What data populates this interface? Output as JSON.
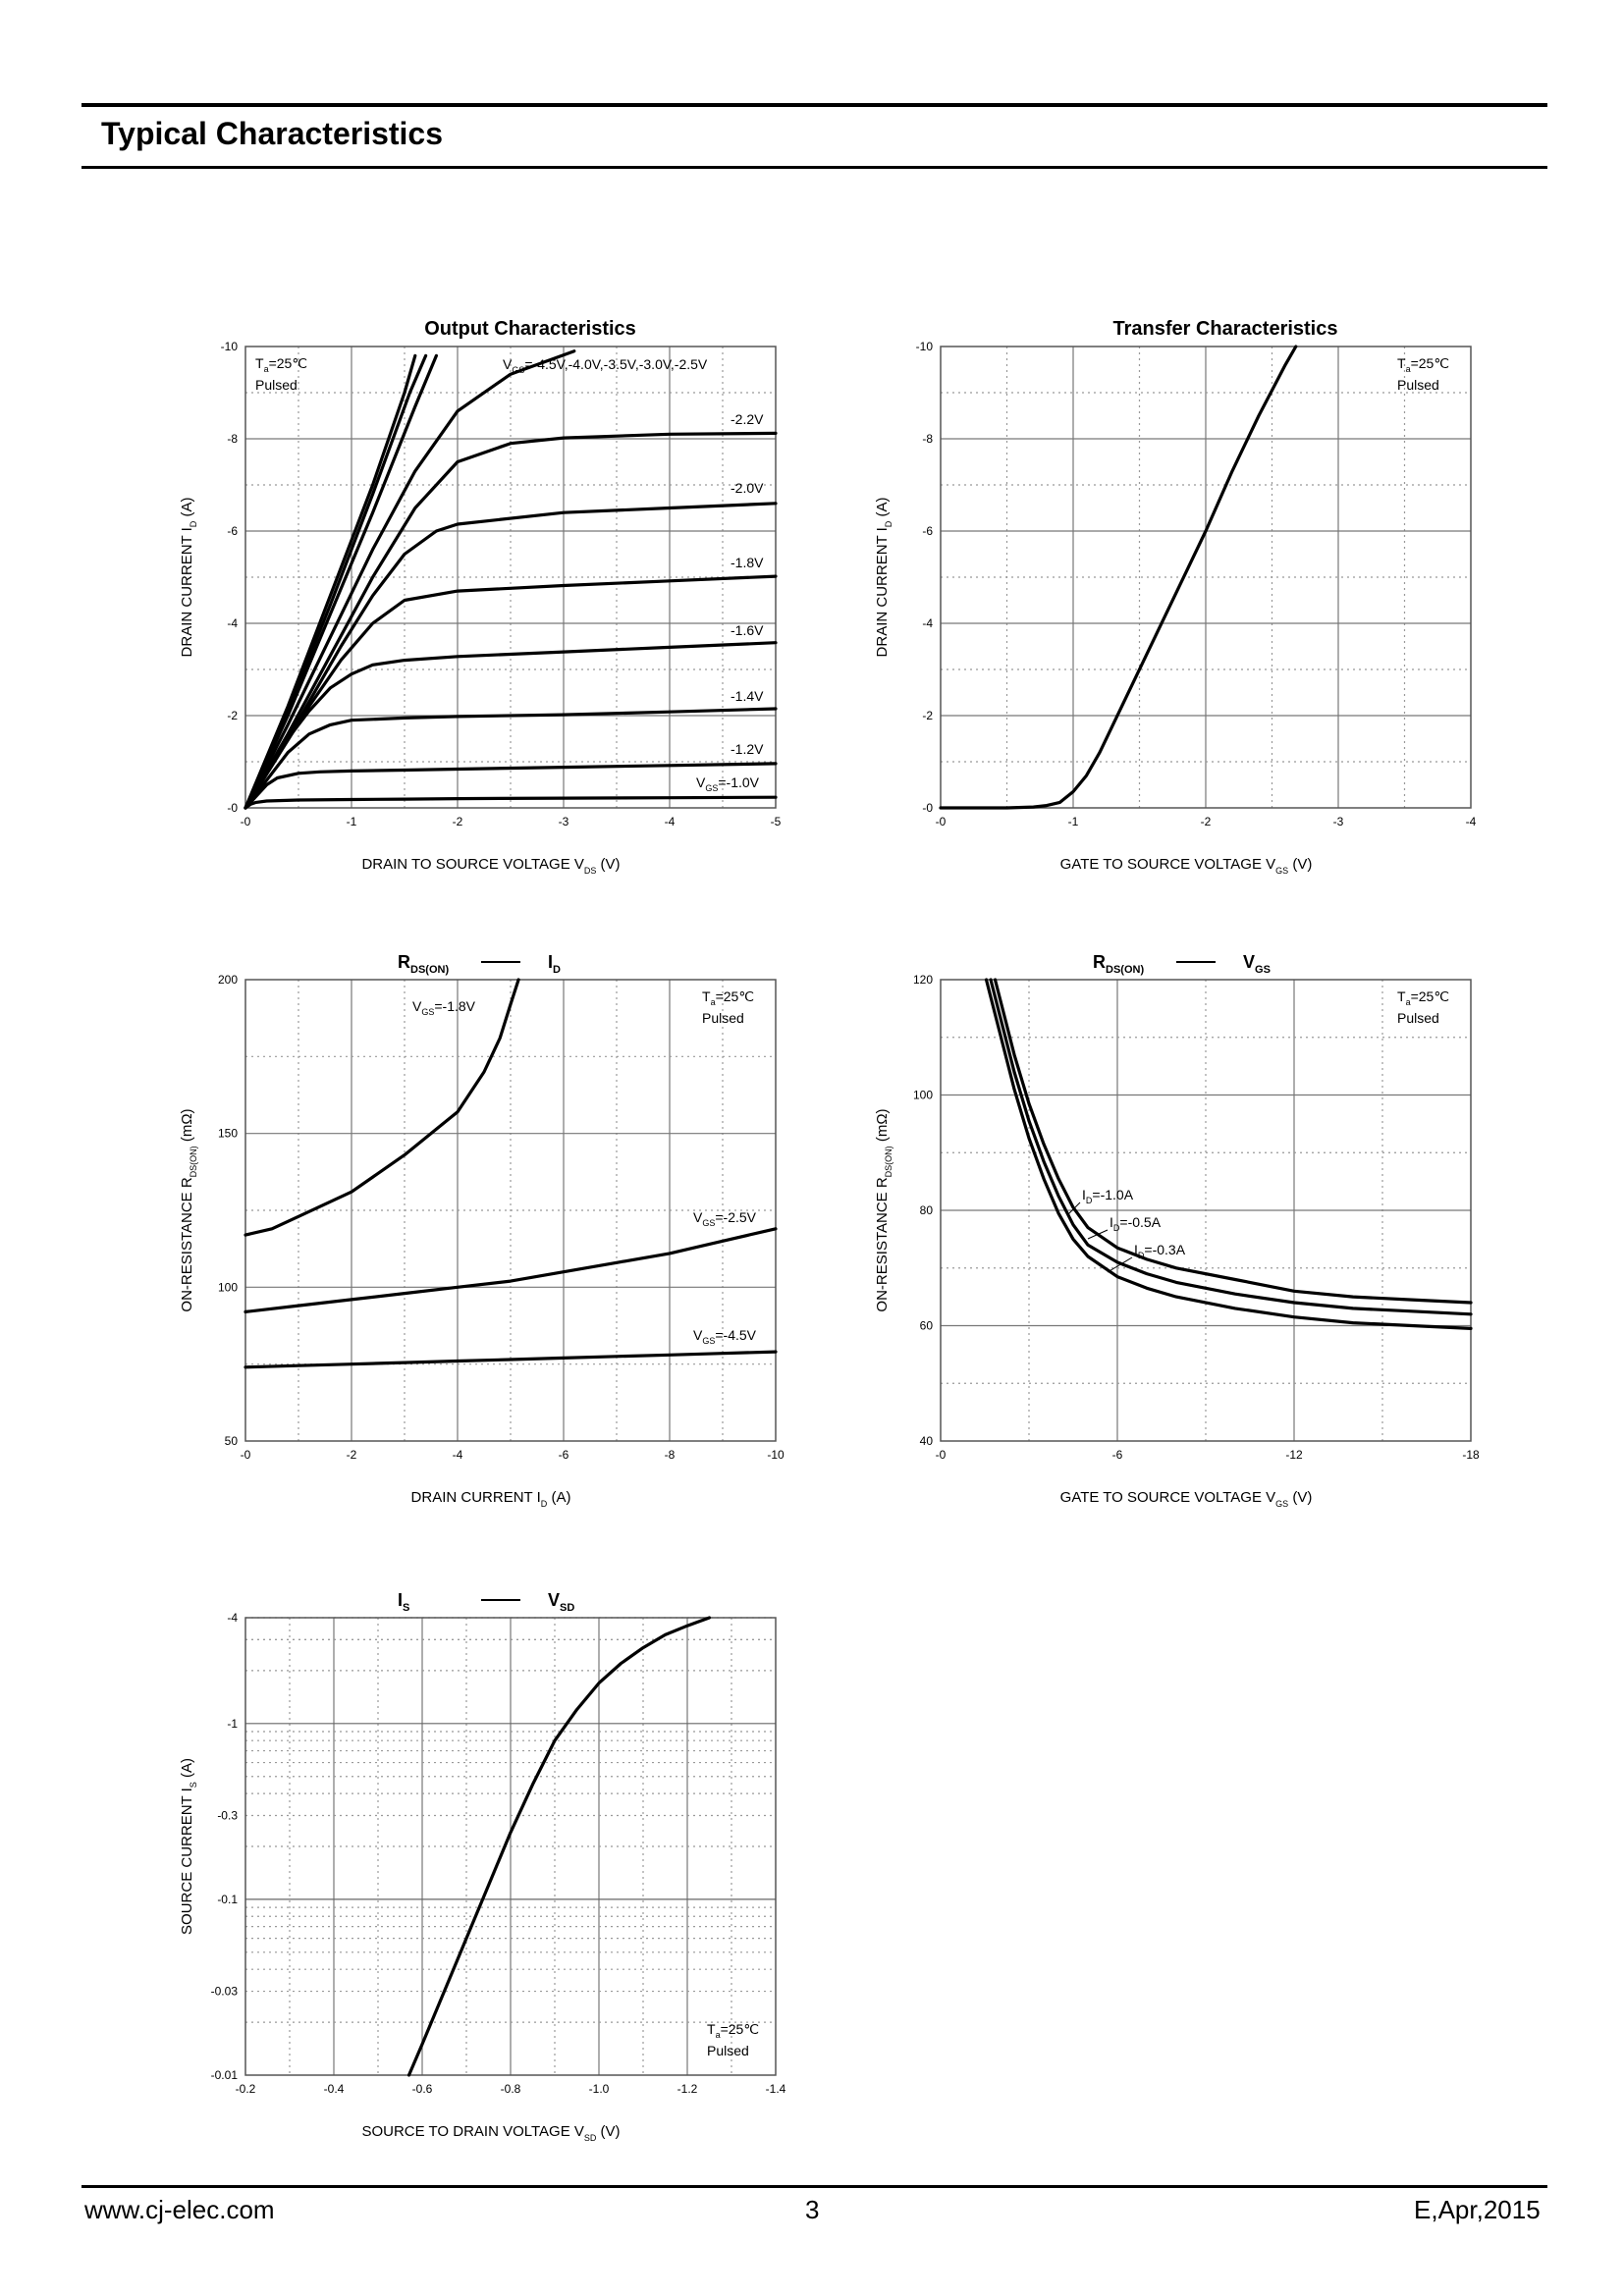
{
  "header": {
    "title": "Typical Characteristics"
  },
  "footer": {
    "website": "www.cj-elec.com",
    "page_number": "3",
    "revision": "E,Apr,2015"
  },
  "chart_data": [
    {
      "id": "output",
      "type": "line",
      "title": "Output Characteristics",
      "xlabel": "DRAIN TO SOURCE VOLTAGE",
      "xlabel_symbol": "V",
      "xlabel_sub": "DS",
      "xlabel_unit": "(V)",
      "ylabel": "DRAIN CURRENT",
      "ylabel_symbol": "I",
      "ylabel_sub": "D",
      "ylabel_unit": "(A)",
      "xlim": [
        0,
        -5
      ],
      "ylim": [
        0,
        -10
      ],
      "xticks": [
        "-0",
        "-1",
        "-2",
        "-3",
        "-4",
        "-5"
      ],
      "yticks": [
        "-0",
        "-2",
        "-4",
        "-6",
        "-8",
        "-10"
      ],
      "grid": true,
      "conditions": {
        "symbol": "T",
        "sub": "a",
        "text": "=25℃",
        "line2": "Pulsed",
        "position": "top-left"
      },
      "series_label_texts": [
        {
          "id": "vgs_multi",
          "text": "=-4.5V,-4.0V,-3.5V,-3.0V,-2.5V",
          "prefix": "V",
          "prefix_sub": "GS"
        },
        {
          "id": "vgs22",
          "text": "-2.2V"
        },
        {
          "id": "vgs20",
          "text": "-2.0V"
        },
        {
          "id": "vgs18",
          "text": "-1.8V"
        },
        {
          "id": "vgs16",
          "text": "-1.6V"
        },
        {
          "id": "vgs14",
          "text": "-1.4V"
        },
        {
          "id": "vgs12",
          "text": "-1.2V"
        },
        {
          "id": "vgs10",
          "text": "=-1.0V",
          "prefix": "V",
          "prefix_sub": "GS"
        }
      ],
      "series": [
        {
          "x": [
            0,
            -0.05,
            -0.1,
            -0.2,
            -0.5,
            -1,
            -1.5,
            -2,
            -3,
            -4,
            -5
          ],
          "y": [
            0,
            -0.08,
            -0.12,
            -0.15,
            -0.17,
            -0.18,
            -0.19,
            -0.2,
            -0.21,
            -0.22,
            -0.23
          ]
        },
        {
          "x": [
            0,
            -0.1,
            -0.2,
            -0.3,
            -0.5,
            -0.7,
            -1,
            -1.5,
            -2,
            -3,
            -4,
            -5
          ],
          "y": [
            0,
            -0.25,
            -0.5,
            -0.65,
            -0.75,
            -0.78,
            -0.8,
            -0.82,
            -0.84,
            -0.88,
            -0.92,
            -0.96
          ]
        },
        {
          "x": [
            0,
            -0.2,
            -0.4,
            -0.6,
            -0.8,
            -1,
            -1.5,
            -2,
            -3,
            -4,
            -5
          ],
          "y": [
            0,
            -0.6,
            -1.2,
            -1.6,
            -1.8,
            -1.9,
            -1.95,
            -1.98,
            -2.02,
            -2.08,
            -2.15
          ]
        },
        {
          "x": [
            0,
            -0.2,
            -0.4,
            -0.6,
            -0.8,
            -1,
            -1.2,
            -1.5,
            -2,
            -3,
            -4,
            -5
          ],
          "y": [
            0,
            -0.8,
            -1.5,
            -2.1,
            -2.6,
            -2.9,
            -3.1,
            -3.2,
            -3.28,
            -3.38,
            -3.48,
            -3.58
          ]
        },
        {
          "x": [
            0,
            -0.3,
            -0.6,
            -0.9,
            -1.2,
            -1.5,
            -2,
            -3,
            -4,
            -5
          ],
          "y": [
            0,
            -1.1,
            -2.2,
            -3.2,
            -4.0,
            -4.5,
            -4.7,
            -4.82,
            -4.92,
            -5.02
          ]
        },
        {
          "x": [
            0,
            -0.3,
            -0.6,
            -0.9,
            -1.2,
            -1.5,
            -1.8,
            -2,
            -3,
            -4,
            -5
          ],
          "y": [
            0,
            -1.1,
            -2.3,
            -3.5,
            -4.6,
            -5.5,
            -6.0,
            -6.15,
            -6.4,
            -6.5,
            -6.6
          ]
        },
        {
          "x": [
            0,
            -0.4,
            -0.8,
            -1.2,
            -1.6,
            -2,
            -2.5,
            -3,
            -4,
            -5
          ],
          "y": [
            0,
            -1.6,
            -3.3,
            -5.0,
            -6.5,
            -7.5,
            -7.9,
            -8.02,
            -8.1,
            -8.12
          ]
        },
        {
          "x": [
            0,
            -0.4,
            -0.8,
            -1.2,
            -1.6,
            -2,
            -2.5,
            -3.1
          ],
          "y": [
            0,
            -1.8,
            -3.7,
            -5.6,
            -7.3,
            -8.6,
            -9.4,
            -9.9
          ]
        },
        {
          "x": [
            0,
            -0.4,
            -0.8,
            -1.2,
            -1.6,
            -1.8
          ],
          "y": [
            0,
            -2.0,
            -4.2,
            -6.4,
            -8.7,
            -9.8
          ]
        },
        {
          "x": [
            0,
            -0.4,
            -0.8,
            -1.2,
            -1.55,
            -1.7
          ],
          "y": [
            0,
            -2.1,
            -4.4,
            -6.8,
            -9.0,
            -9.8
          ]
        },
        {
          "x": [
            0,
            -0.4,
            -0.8,
            -1.2,
            -1.5,
            -1.6
          ],
          "y": [
            0,
            -2.2,
            -4.6,
            -7.0,
            -9.0,
            -9.8
          ]
        }
      ]
    },
    {
      "id": "transfer",
      "type": "line",
      "title": "Transfer Characteristics",
      "xlabel": "GATE TO SOURCE VOLTAGE",
      "xlabel_symbol": "V",
      "xlabel_sub": "GS",
      "xlabel_unit": "(V)",
      "ylabel": "DRAIN CURRENT",
      "ylabel_symbol": "I",
      "ylabel_sub": "D",
      "ylabel_unit": "(A)",
      "xlim": [
        0,
        -4
      ],
      "ylim": [
        0,
        -10
      ],
      "xticks": [
        "-0",
        "-1",
        "-2",
        "-3",
        "-4"
      ],
      "yticks": [
        "-0",
        "-2",
        "-4",
        "-6",
        "-8",
        "-10"
      ],
      "grid": true,
      "conditions": {
        "symbol": "T",
        "sub": "a",
        "text": "=25℃",
        "line2": "Pulsed",
        "position": "top-right"
      },
      "series": [
        {
          "x": [
            0,
            -0.5,
            -0.7,
            -0.8,
            -0.9,
            -1.0,
            -1.1,
            -1.2,
            -1.4,
            -1.6,
            -1.8,
            -2.0,
            -2.2,
            -2.4,
            -2.6,
            -2.68
          ],
          "y": [
            0,
            0,
            -0.02,
            -0.05,
            -0.12,
            -0.35,
            -0.7,
            -1.2,
            -2.4,
            -3.6,
            -4.8,
            -6.0,
            -7.3,
            -8.5,
            -9.6,
            -10.0
          ]
        }
      ]
    },
    {
      "id": "rds_id",
      "type": "line",
      "title_parts": {
        "left_symbol": "R",
        "left_sub": "DS(ON)",
        "right_symbol": "I",
        "right_sub": "D"
      },
      "xlabel": "DRAIN CURRENT",
      "xlabel_symbol": "I",
      "xlabel_sub": "D",
      "xlabel_unit": "(A)",
      "ylabel": "ON-RESISTANCE",
      "ylabel_symbol": "R",
      "ylabel_sub": "DS(ON)",
      "ylabel_unit": "(mΩ)",
      "xlim": [
        0,
        -10
      ],
      "ylim": [
        50,
        200
      ],
      "xticks": [
        "-0",
        "-2",
        "-4",
        "-6",
        "-8",
        "-10"
      ],
      "yticks": [
        "50",
        "100",
        "150",
        "200"
      ],
      "grid": true,
      "conditions": {
        "symbol": "T",
        "sub": "a",
        "text": "=25℃",
        "line2": "Pulsed",
        "position": "top-right"
      },
      "series_label_texts": [
        {
          "id": "vgs18",
          "prefix": "V",
          "prefix_sub": "GS",
          "text": "=-1.8V"
        },
        {
          "id": "vgs25",
          "prefix": "V",
          "prefix_sub": "GS",
          "text": "=-2.5V"
        },
        {
          "id": "vgs45",
          "prefix": "V",
          "prefix_sub": "GS",
          "text": "=-4.5V"
        }
      ],
      "series": [
        {
          "x": [
            0,
            -0.5,
            -1,
            -2,
            -3,
            -4,
            -4.5,
            -4.8,
            -5.0,
            -5.15
          ],
          "y": [
            117,
            119,
            123,
            131,
            143,
            157,
            170,
            181,
            192,
            200
          ]
        },
        {
          "x": [
            0,
            -1,
            -2,
            -3,
            -4,
            -5,
            -6,
            -7,
            -8,
            -9,
            -10
          ],
          "y": [
            92,
            94,
            96,
            98,
            100,
            102,
            105,
            108,
            111,
            115,
            119
          ]
        },
        {
          "x": [
            0,
            -1,
            -2,
            -3,
            -4,
            -5,
            -6,
            -7,
            -8,
            -9,
            -10
          ],
          "y": [
            74,
            74.5,
            75,
            75.5,
            76,
            76.5,
            77,
            77.5,
            78,
            78.5,
            79
          ]
        }
      ]
    },
    {
      "id": "rds_vgs",
      "type": "line",
      "title_parts": {
        "left_symbol": "R",
        "left_sub": "DS(ON)",
        "right_symbol": "V",
        "right_sub": "GS"
      },
      "xlabel": "GATE TO SOURCE VOLTAGE",
      "xlabel_symbol": "V",
      "xlabel_sub": "GS",
      "xlabel_unit": "(V)",
      "ylabel": "ON-RESISTANCE",
      "ylabel_symbol": "R",
      "ylabel_sub": "DS(ON)",
      "ylabel_unit": "(mΩ)",
      "xlim": [
        0,
        -18
      ],
      "ylim": [
        40,
        120
      ],
      "xticks": [
        "-0",
        "-6",
        "-12",
        "-18"
      ],
      "yticks": [
        "40",
        "60",
        "80",
        "100",
        "120"
      ],
      "grid": true,
      "conditions": {
        "symbol": "T",
        "sub": "a",
        "text": "=25℃",
        "line2": "Pulsed",
        "position": "top-right"
      },
      "series_label_texts": [
        {
          "id": "id10",
          "prefix": "I",
          "prefix_sub": "D",
          "text": "=-1.0A"
        },
        {
          "id": "id05",
          "prefix": "I",
          "prefix_sub": "D",
          "text": "=-0.5A"
        },
        {
          "id": "id03",
          "prefix": "I",
          "prefix_sub": "D",
          "text": "=-0.3A"
        }
      ],
      "series": [
        {
          "x": [
            -1.85,
            -2,
            -2.5,
            -3,
            -3.5,
            -4,
            -4.5,
            -5,
            -6,
            -7,
            -8,
            -10,
            -12,
            -14,
            -16,
            -18
          ],
          "y": [
            120,
            117,
            107,
            98.5,
            91.5,
            85.5,
            80.5,
            77,
            73.5,
            71.5,
            70,
            68,
            66,
            65,
            64.5,
            64
          ]
        },
        {
          "x": [
            -1.7,
            -2,
            -2.5,
            -3,
            -3.5,
            -4,
            -4.5,
            -5,
            -6,
            -7,
            -8,
            -10,
            -12,
            -14,
            -16,
            -18
          ],
          "y": [
            120,
            114,
            104,
            95.5,
            88.5,
            82.5,
            77.5,
            74,
            71,
            69,
            67.5,
            65.5,
            64,
            63,
            62.5,
            62
          ]
        },
        {
          "x": [
            -1.55,
            -2,
            -2.5,
            -3,
            -3.5,
            -4,
            -4.5,
            -5,
            -6,
            -7,
            -8,
            -10,
            -12,
            -14,
            -16,
            -18
          ],
          "y": [
            120,
            111,
            101,
            92.5,
            85.5,
            79.5,
            75,
            72,
            68.5,
            66.5,
            65,
            63,
            61.5,
            60.5,
            60,
            59.5
          ]
        }
      ]
    },
    {
      "id": "is_vsd",
      "type": "line",
      "title_parts": {
        "left_symbol": "I",
        "left_sub": "S",
        "right_symbol": "V",
        "right_sub": "SD"
      },
      "xlabel": "SOURCE TO DRAIN VOLTAGE",
      "xlabel_symbol": "V",
      "xlabel_sub": "SD",
      "xlabel_unit": "(V)",
      "ylabel": "SOURCE CURRENT",
      "ylabel_symbol": "I",
      "ylabel_sub": "S",
      "ylabel_unit": "(A)",
      "xlim": [
        -0.2,
        -1.4
      ],
      "ylim": [
        -0.01,
        -4
      ],
      "yscale": "log",
      "xticks": [
        "-0.2",
        "-0.4",
        "-0.6",
        "-0.8",
        "-1.0",
        "-1.2",
        "-1.4"
      ],
      "yticks": [
        "-0.01",
        "-0.03",
        "-0.1",
        "-0.3",
        "-1",
        "-4"
      ],
      "grid": true,
      "conditions": {
        "symbol": "T",
        "sub": "a",
        "text": "=25℃",
        "line2": "Pulsed",
        "position": "bottom-right"
      },
      "series": [
        {
          "x": [
            -0.57,
            -0.6,
            -0.65,
            -0.7,
            -0.75,
            -0.8,
            -0.85,
            -0.9,
            -0.95,
            -1.0,
            -1.05,
            -1.1,
            -1.15,
            -1.2,
            -1.25
          ],
          "y": [
            -0.01,
            -0.015,
            -0.03,
            -0.06,
            -0.12,
            -0.24,
            -0.45,
            -0.8,
            -1.2,
            -1.7,
            -2.2,
            -2.7,
            -3.2,
            -3.6,
            -4.0
          ]
        }
      ]
    }
  ]
}
